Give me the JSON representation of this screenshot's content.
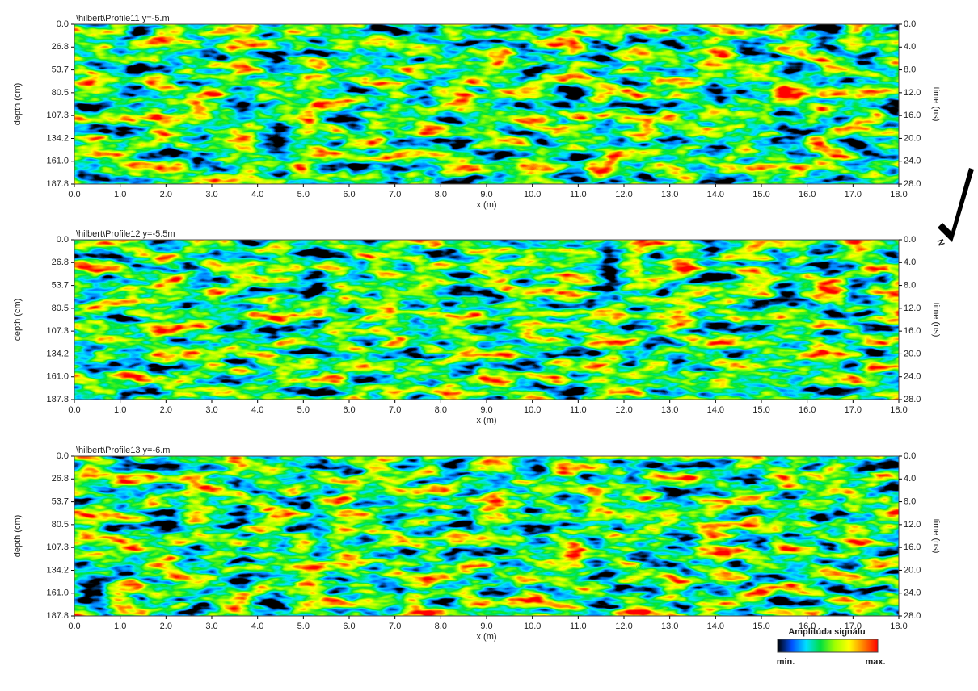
{
  "chart_data": [
    {
      "type": "radargram",
      "title": "\\hilbert\\Profile11   y=-5.m",
      "xlabel": "x (m)",
      "ylabel": "depth (cm)",
      "y2label": "time (ns)",
      "xlim": [
        0,
        18
      ],
      "xticks": [
        {
          "value": 0,
          "label": "0.0"
        },
        {
          "value": 1,
          "label": "1.0"
        },
        {
          "value": 2,
          "label": "2.0"
        },
        {
          "value": 3,
          "label": "3.0"
        },
        {
          "value": 4,
          "label": "4.0"
        },
        {
          "value": 5,
          "label": "5.0"
        },
        {
          "value": 6,
          "label": "6.0"
        },
        {
          "value": 7,
          "label": "7.0"
        },
        {
          "value": 8,
          "label": "8.0"
        },
        {
          "value": 9,
          "label": "9.0"
        },
        {
          "value": 10,
          "label": "10.0"
        },
        {
          "value": 11,
          "label": "11.0"
        },
        {
          "value": 12,
          "label": "12.0"
        },
        {
          "value": 13,
          "label": "13.0"
        },
        {
          "value": 14,
          "label": "14.0"
        },
        {
          "value": 15,
          "label": "15.0"
        },
        {
          "value": 16,
          "label": "16.0"
        },
        {
          "value": 17,
          "label": "17.0"
        },
        {
          "value": 18,
          "label": "18.0"
        }
      ],
      "ylim": [
        187.8,
        0
      ],
      "yticks": [
        {
          "value": 0,
          "label": "0.0"
        },
        26.8,
        53.7,
        80.5,
        107.3,
        134.2,
        {
          "value": 161,
          "label": "161.0"
        },
        187.8
      ],
      "y2lim": [
        28,
        0
      ],
      "y2ticks": [
        {
          "value": 0,
          "label": "0.0"
        },
        {
          "value": 4,
          "label": "4.0"
        },
        {
          "value": 8,
          "label": "8.0"
        },
        {
          "value": 12,
          "label": "12.0"
        },
        {
          "value": 16,
          "label": "16.0"
        },
        {
          "value": 20,
          "label": "20.0"
        },
        {
          "value": 24,
          "label": "24.0"
        },
        {
          "value": 28,
          "label": "28.0"
        }
      ]
    },
    {
      "type": "radargram",
      "title": "\\hilbert\\Profile12   y=-5.5m",
      "xlabel": "x (m)",
      "ylabel": "depth (cm)",
      "y2label": "time (ns)",
      "xlim": [
        0,
        18
      ],
      "xticks": [
        {
          "value": 0,
          "label": "0.0"
        },
        {
          "value": 1,
          "label": "1.0"
        },
        {
          "value": 2,
          "label": "2.0"
        },
        {
          "value": 3,
          "label": "3.0"
        },
        {
          "value": 4,
          "label": "4.0"
        },
        {
          "value": 5,
          "label": "5.0"
        },
        {
          "value": 6,
          "label": "6.0"
        },
        {
          "value": 7,
          "label": "7.0"
        },
        {
          "value": 8,
          "label": "8.0"
        },
        {
          "value": 9,
          "label": "9.0"
        },
        {
          "value": 10,
          "label": "10.0"
        },
        {
          "value": 11,
          "label": "11.0"
        },
        {
          "value": 12,
          "label": "12.0"
        },
        {
          "value": 13,
          "label": "13.0"
        },
        {
          "value": 14,
          "label": "14.0"
        },
        {
          "value": 15,
          "label": "15.0"
        },
        {
          "value": 16,
          "label": "16.0"
        },
        {
          "value": 17,
          "label": "17.0"
        },
        {
          "value": 18,
          "label": "18.0"
        }
      ],
      "ylim": [
        187.8,
        0
      ],
      "yticks": [
        {
          "value": 0,
          "label": "0.0"
        },
        26.8,
        53.7,
        80.5,
        107.3,
        134.2,
        {
          "value": 161,
          "label": "161.0"
        },
        187.8
      ],
      "y2lim": [
        28,
        0
      ],
      "y2ticks": [
        {
          "value": 0,
          "label": "0.0"
        },
        {
          "value": 4,
          "label": "4.0"
        },
        {
          "value": 8,
          "label": "8.0"
        },
        {
          "value": 12,
          "label": "12.0"
        },
        {
          "value": 16,
          "label": "16.0"
        },
        {
          "value": 20,
          "label": "20.0"
        },
        {
          "value": 24,
          "label": "24.0"
        },
        {
          "value": 28,
          "label": "28.0"
        }
      ]
    },
    {
      "type": "radargram",
      "title": "\\hilbert\\Profile13   y=-6.m",
      "xlabel": "x (m)",
      "ylabel": "depth (cm)",
      "y2label": "time (ns)",
      "xlim": [
        0,
        18
      ],
      "xticks": [
        {
          "value": 0,
          "label": "0.0"
        },
        {
          "value": 1,
          "label": "1.0"
        },
        {
          "value": 2,
          "label": "2.0"
        },
        {
          "value": 3,
          "label": "3.0"
        },
        {
          "value": 4,
          "label": "4.0"
        },
        {
          "value": 5,
          "label": "5.0"
        },
        {
          "value": 6,
          "label": "6.0"
        },
        {
          "value": 7,
          "label": "7.0"
        },
        {
          "value": 8,
          "label": "8.0"
        },
        {
          "value": 9,
          "label": "9.0"
        },
        {
          "value": 10,
          "label": "10.0"
        },
        {
          "value": 11,
          "label": "11.0"
        },
        {
          "value": 12,
          "label": "12.0"
        },
        {
          "value": 13,
          "label": "13.0"
        },
        {
          "value": 14,
          "label": "14.0"
        },
        {
          "value": 15,
          "label": "15.0"
        },
        {
          "value": 16,
          "label": "16.0"
        },
        {
          "value": 17,
          "label": "17.0"
        },
        {
          "value": 18,
          "label": "18.0"
        }
      ],
      "ylim": [
        187.8,
        0
      ],
      "yticks": [
        {
          "value": 0,
          "label": "0.0"
        },
        26.8,
        53.7,
        80.5,
        107.3,
        134.2,
        {
          "value": 161,
          "label": "161.0"
        },
        187.8
      ],
      "y2lim": [
        28,
        0
      ],
      "y2ticks": [
        {
          "value": 0,
          "label": "0.0"
        },
        {
          "value": 4,
          "label": "4.0"
        },
        {
          "value": 8,
          "label": "8.0"
        },
        {
          "value": 12,
          "label": "12.0"
        },
        {
          "value": 16,
          "label": "16.0"
        },
        {
          "value": 20,
          "label": "20.0"
        },
        {
          "value": 24,
          "label": "24.0"
        },
        {
          "value": 28,
          "label": "28.0"
        }
      ]
    }
  ],
  "colorbar": {
    "title": "Amplitúda signálu",
    "min_label": "min.",
    "max_label": "max.",
    "colors": [
      "#000000",
      "#0050ff",
      "#00e0ff",
      "#00e040",
      "#a0ff00",
      "#ffff00",
      "#ff8000",
      "#ff0000"
    ]
  },
  "north_arrow": {
    "label": "N"
  }
}
